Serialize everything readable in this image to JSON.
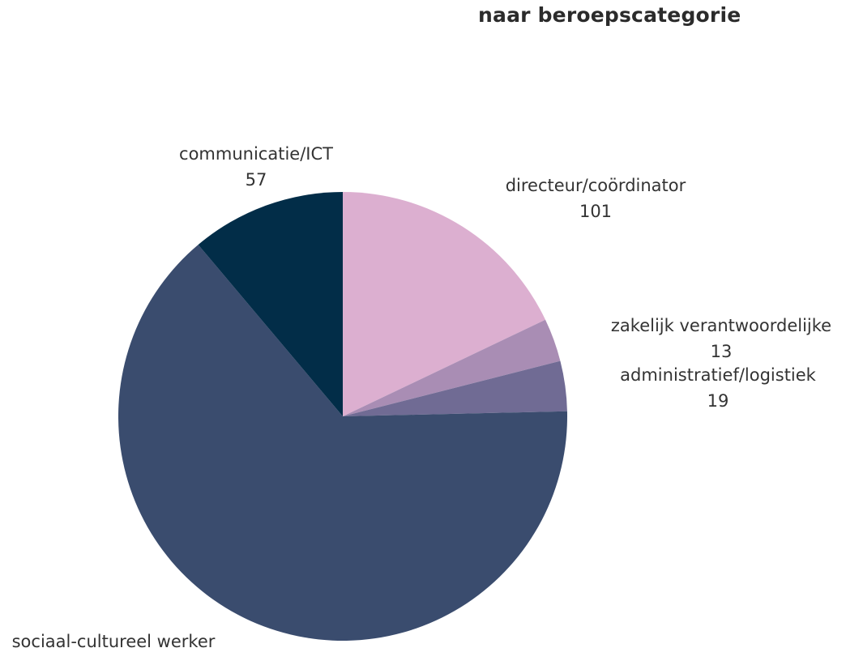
{
  "chart_data": {
    "type": "pie",
    "title": "naar beroepscategorie",
    "slices": [
      {
        "label": "directeur/coördinator",
        "value": 101,
        "color": "#dcafd0"
      },
      {
        "label": "zakelijk verantwoordelijke",
        "value": 13,
        "color": "#a98db4"
      },
      {
        "label": "administratief/logistiek",
        "value": 19,
        "color": "#706b94"
      },
      {
        "label": "sociaal-cultureel werker",
        "value": null,
        "color": "#3a4c6e"
      },
      {
        "label": "communicatie/ICT",
        "value": 57,
        "color": "#022d48"
      }
    ]
  }
}
